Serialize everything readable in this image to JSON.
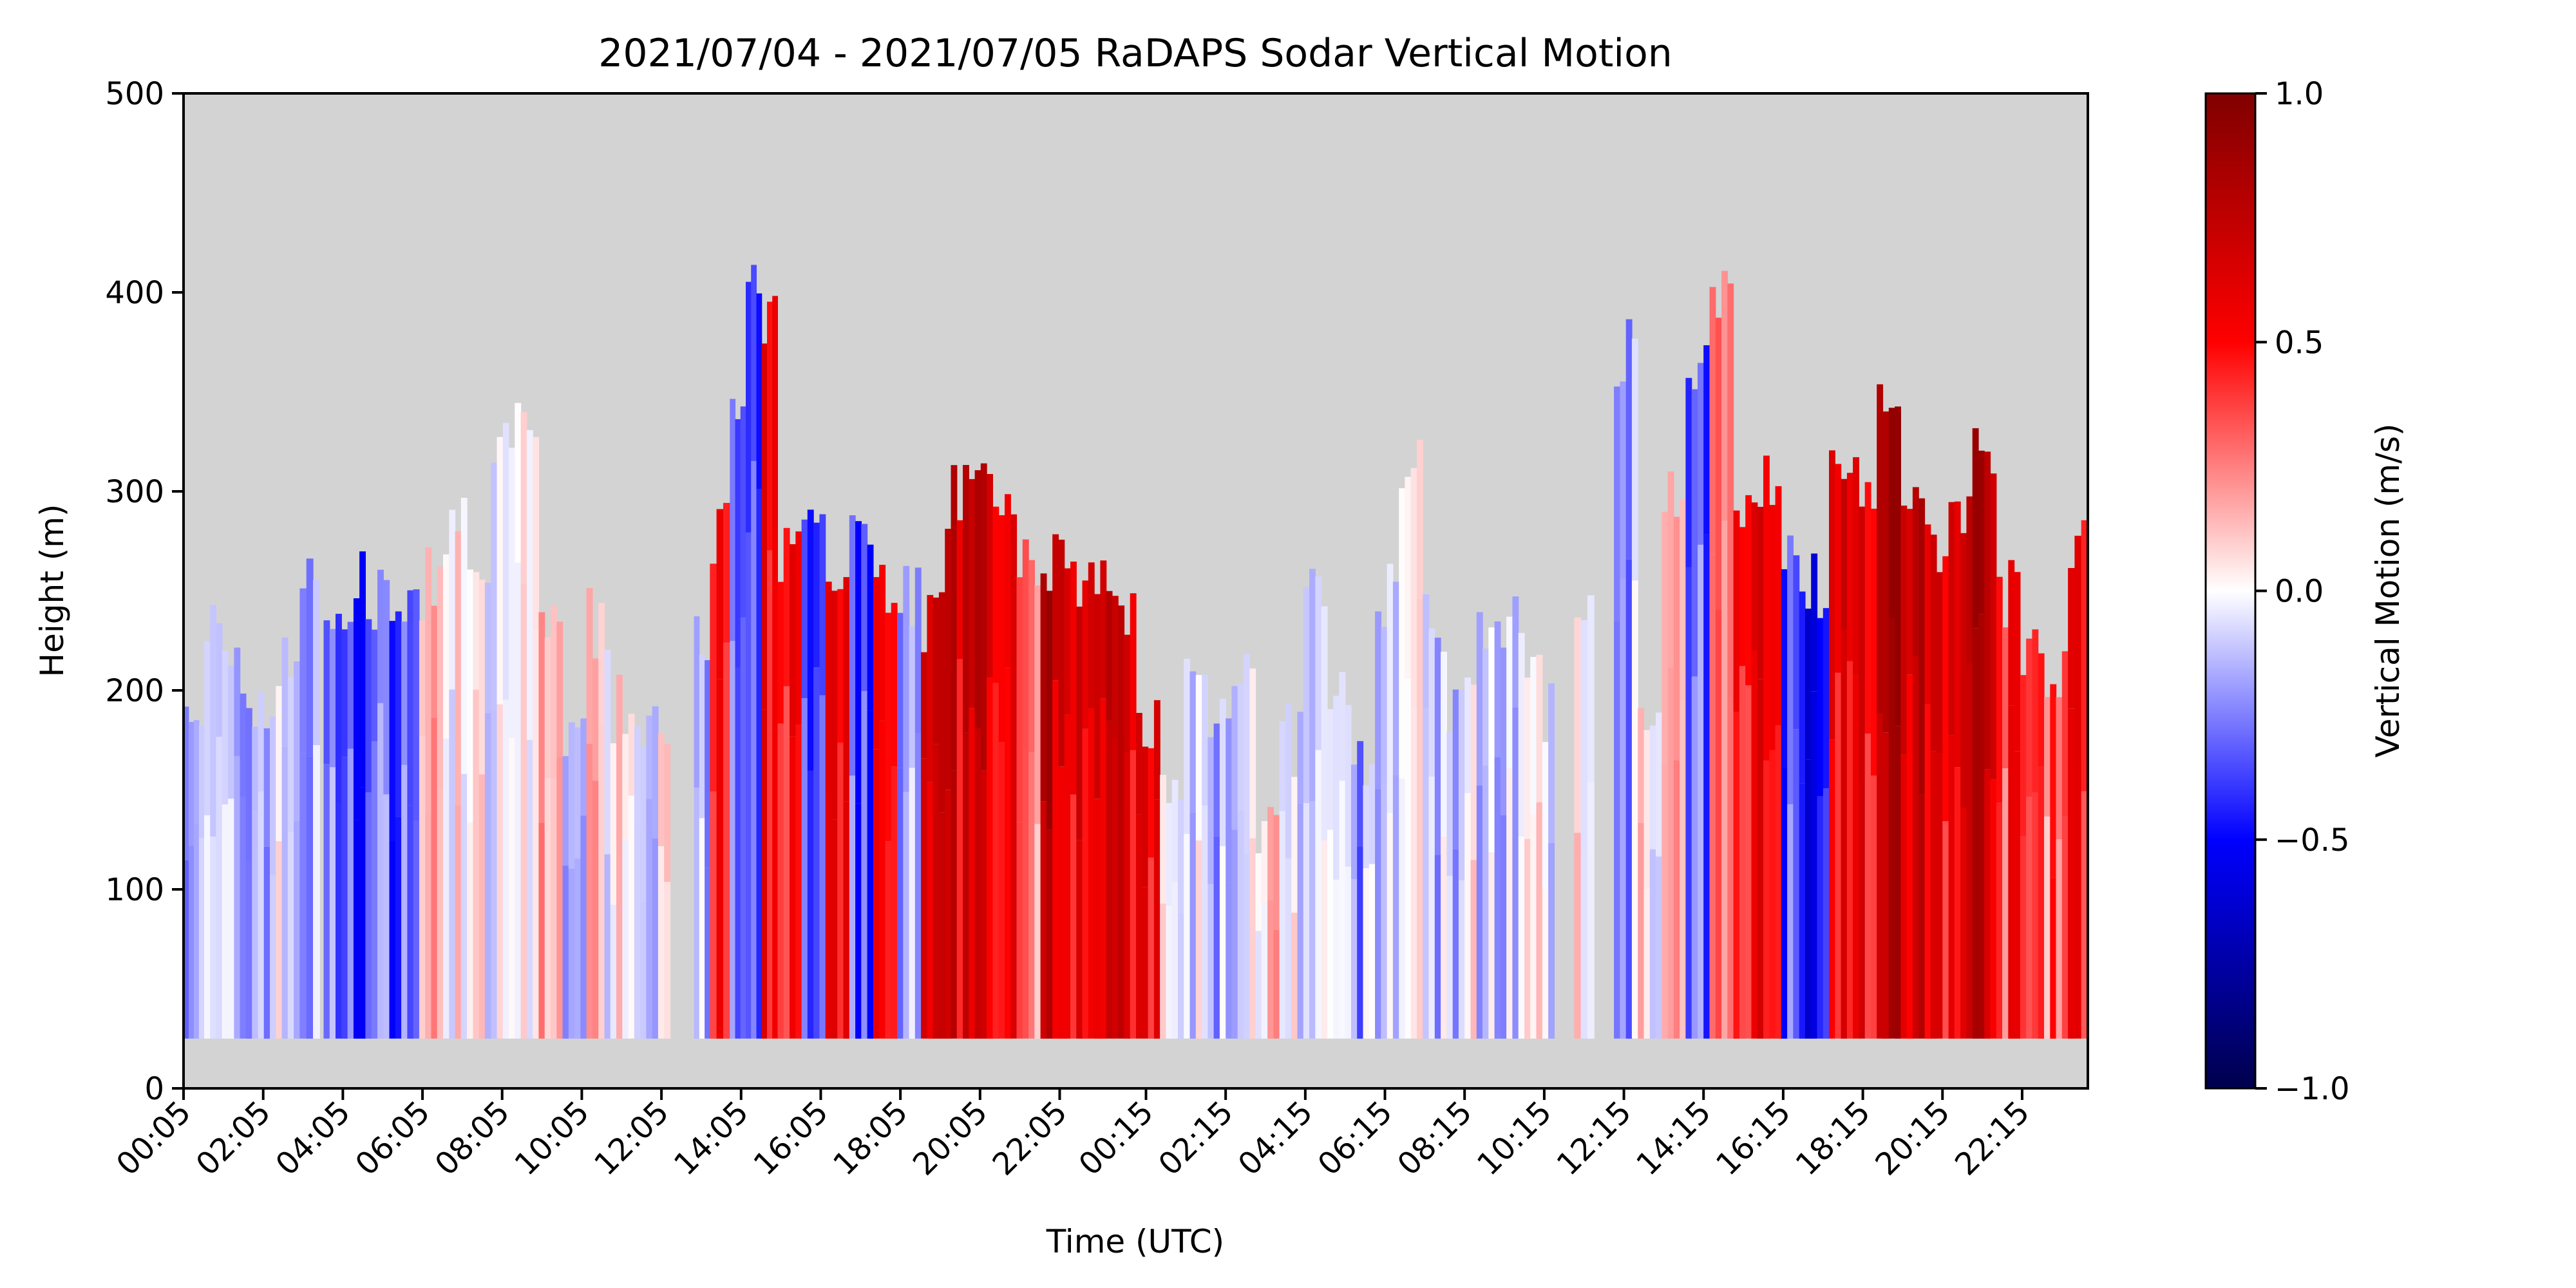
{
  "chart_data": {
    "type": "heatmap",
    "title": "2021/07/04 - 2021/07/05 RaDAPS Sodar Vertical Motion",
    "xlabel": "Time (UTC)",
    "ylabel": "Height (m)",
    "xlim_hours": [
      0.083,
      47.9
    ],
    "ylim": [
      0,
      500
    ],
    "y_ticks": [
      0,
      100,
      200,
      300,
      400,
      500
    ],
    "x_tick_labels": [
      "00:05",
      "02:05",
      "04:05",
      "06:05",
      "08:05",
      "10:05",
      "12:05",
      "14:05",
      "16:05",
      "18:05",
      "20:05",
      "22:05",
      "00:15",
      "02:15",
      "04:15",
      "06:15",
      "08:15",
      "10:15",
      "12:15",
      "14:15",
      "16:15",
      "18:15",
      "20:15",
      "22:15"
    ],
    "x_tick_hours": [
      0.083,
      2.083,
      4.083,
      6.083,
      8.083,
      10.083,
      12.083,
      14.083,
      16.083,
      18.083,
      20.083,
      22.083,
      24.25,
      26.25,
      28.25,
      30.25,
      32.25,
      34.25,
      36.25,
      38.25,
      40.25,
      42.25,
      44.25,
      46.25
    ],
    "missing_color": "#d3d3d3",
    "data_bottom_m": 25,
    "colormap": "seismic",
    "colorbar": {
      "label": "Vertical Motion (m/s)",
      "vmin": -1.0,
      "vmax": 1.0,
      "ticks": [
        -1.0,
        -0.5,
        0.0,
        0.5,
        1.0
      ],
      "tick_labels": [
        "−1.0",
        "−0.5",
        "0.0",
        "0.5",
        "1.0"
      ],
      "stops": [
        "#00004c",
        "#0000ff",
        "#ffffff",
        "#ff0000",
        "#800000"
      ]
    },
    "segments_note": "time ranges in hours, top height in m, mean vertical motion in m/s",
    "segments": [
      {
        "t0": 0.08,
        "t1": 0.6,
        "top": 175,
        "w": -0.1
      },
      {
        "t0": 0.6,
        "t1": 1.2,
        "top": 235,
        "w": -0.15
      },
      {
        "t0": 1.2,
        "t1": 1.8,
        "top": 205,
        "w": -0.2
      },
      {
        "t0": 1.8,
        "t1": 2.4,
        "top": 190,
        "w": -0.1
      },
      {
        "t0": 2.4,
        "t1": 3.0,
        "top": 220,
        "w": -0.08
      },
      {
        "t0": 3.0,
        "t1": 3.5,
        "top": 250,
        "w": -0.18
      },
      {
        "t0": 3.5,
        "t1": 3.6,
        "top": 0,
        "w": null
      },
      {
        "t0": 3.6,
        "t1": 4.2,
        "top": 235,
        "w": -0.3
      },
      {
        "t0": 4.2,
        "t1": 4.8,
        "top": 250,
        "w": -0.35
      },
      {
        "t0": 4.8,
        "t1": 5.4,
        "top": 245,
        "w": -0.3
      },
      {
        "t0": 5.4,
        "t1": 6.0,
        "top": 235,
        "w": -0.25
      },
      {
        "t0": 6.0,
        "t1": 6.6,
        "top": 255,
        "w": 0.1
      },
      {
        "t0": 6.6,
        "t1": 7.2,
        "top": 280,
        "w": 0.08
      },
      {
        "t0": 7.2,
        "t1": 7.8,
        "top": 245,
        "w": -0.05
      },
      {
        "t0": 7.8,
        "t1": 8.4,
        "top": 325,
        "w": -0.08
      },
      {
        "t0": 8.4,
        "t1": 9.0,
        "top": 325,
        "w": 0.05
      },
      {
        "t0": 9.0,
        "t1": 9.6,
        "top": 240,
        "w": 0.1
      },
      {
        "t0": 9.6,
        "t1": 10.2,
        "top": 175,
        "w": -0.05
      },
      {
        "t0": 10.2,
        "t1": 10.8,
        "top": 235,
        "w": 0.05
      },
      {
        "t0": 10.8,
        "t1": 11.4,
        "top": 190,
        "w": 0.12
      },
      {
        "t0": 11.4,
        "t1": 12.0,
        "top": 175,
        "w": -0.06
      },
      {
        "t0": 12.0,
        "t1": 12.3,
        "top": 190,
        "w": 0.2
      },
      {
        "t0": 12.3,
        "t1": 12.9,
        "top": 0,
        "w": null
      },
      {
        "t0": 12.9,
        "t1": 13.3,
        "top": 235,
        "w": -0.2
      },
      {
        "t0": 13.3,
        "t1": 13.8,
        "top": 280,
        "w": 0.4
      },
      {
        "t0": 13.8,
        "t1": 14.2,
        "top": 340,
        "w": -0.3
      },
      {
        "t0": 14.2,
        "t1": 14.6,
        "top": 400,
        "w": -0.4
      },
      {
        "t0": 14.6,
        "t1": 15.0,
        "top": 380,
        "w": 0.45
      },
      {
        "t0": 15.0,
        "t1": 15.6,
        "top": 265,
        "w": 0.5
      },
      {
        "t0": 15.6,
        "t1": 16.2,
        "top": 295,
        "w": -0.4
      },
      {
        "t0": 16.2,
        "t1": 16.8,
        "top": 270,
        "w": 0.45
      },
      {
        "t0": 16.8,
        "t1": 17.4,
        "top": 280,
        "w": -0.35
      },
      {
        "t0": 17.4,
        "t1": 18.0,
        "top": 255,
        "w": 0.4
      },
      {
        "t0": 18.0,
        "t1": 18.6,
        "top": 250,
        "w": -0.2
      },
      {
        "t0": 18.6,
        "t1": 19.2,
        "top": 235,
        "w": 0.55
      },
      {
        "t0": 19.2,
        "t1": 19.8,
        "top": 295,
        "w": 0.6
      },
      {
        "t0": 19.8,
        "t1": 20.4,
        "top": 325,
        "w": 0.7
      },
      {
        "t0": 20.4,
        "t1": 21.0,
        "top": 280,
        "w": 0.45
      },
      {
        "t0": 21.0,
        "t1": 21.6,
        "top": 270,
        "w": 0.25
      },
      {
        "t0": 21.6,
        "t1": 22.2,
        "top": 265,
        "w": 0.75
      },
      {
        "t0": 22.2,
        "t1": 22.8,
        "top": 245,
        "w": 0.6
      },
      {
        "t0": 22.8,
        "t1": 23.4,
        "top": 250,
        "w": 0.65
      },
      {
        "t0": 23.4,
        "t1": 24.0,
        "top": 235,
        "w": 0.55
      },
      {
        "t0": 24.0,
        "t1": 24.6,
        "top": 190,
        "w": 0.5
      },
      {
        "t0": 24.6,
        "t1": 25.2,
        "top": 145,
        "w": -0.05
      },
      {
        "t0": 25.2,
        "t1": 25.8,
        "top": 205,
        "w": -0.1
      },
      {
        "t0": 25.8,
        "t1": 26.4,
        "top": 190,
        "w": -0.15
      },
      {
        "t0": 26.4,
        "t1": 27.0,
        "top": 220,
        "w": -0.05
      },
      {
        "t0": 27.0,
        "t1": 27.6,
        "top": 130,
        "w": 0.1
      },
      {
        "t0": 27.6,
        "t1": 28.2,
        "top": 175,
        "w": -0.1
      },
      {
        "t0": 28.2,
        "t1": 28.8,
        "top": 250,
        "w": -0.15
      },
      {
        "t0": 28.8,
        "t1": 29.4,
        "top": 190,
        "w": -0.1
      },
      {
        "t0": 29.4,
        "t1": 30.0,
        "top": 160,
        "w": -0.18
      },
      {
        "t0": 30.0,
        "t1": 30.6,
        "top": 250,
        "w": -0.1
      },
      {
        "t0": 30.6,
        "t1": 31.2,
        "top": 310,
        "w": 0.05
      },
      {
        "t0": 31.2,
        "t1": 31.8,
        "top": 235,
        "w": -0.1
      },
      {
        "t0": 31.8,
        "t1": 32.4,
        "top": 190,
        "w": -0.12
      },
      {
        "t0": 32.4,
        "t1": 33.0,
        "top": 220,
        "w": -0.05
      },
      {
        "t0": 33.0,
        "t1": 33.6,
        "top": 230,
        "w": -0.08
      },
      {
        "t0": 33.6,
        "t1": 34.2,
        "top": 220,
        "w": -0.06
      },
      {
        "t0": 34.2,
        "t1": 34.5,
        "top": 190,
        "w": -0.05
      },
      {
        "t0": 34.5,
        "t1": 35.0,
        "top": 0,
        "w": null
      },
      {
        "t0": 35.0,
        "t1": 35.5,
        "top": 235,
        "w": -0.05
      },
      {
        "t0": 35.5,
        "t1": 36.0,
        "top": 0,
        "w": null
      },
      {
        "t0": 36.0,
        "t1": 36.6,
        "top": 370,
        "w": -0.15
      },
      {
        "t0": 36.6,
        "t1": 37.2,
        "top": 200,
        "w": 0.05
      },
      {
        "t0": 37.2,
        "t1": 37.8,
        "top": 300,
        "w": 0.1
      },
      {
        "t0": 37.8,
        "t1": 38.4,
        "top": 355,
        "w": -0.35
      },
      {
        "t0": 38.4,
        "t1": 39.0,
        "top": 400,
        "w": 0.2
      },
      {
        "t0": 39.0,
        "t1": 39.6,
        "top": 280,
        "w": 0.55
      },
      {
        "t0": 39.6,
        "t1": 40.2,
        "top": 310,
        "w": 0.5
      },
      {
        "t0": 40.2,
        "t1": 40.8,
        "top": 265,
        "w": -0.3
      },
      {
        "t0": 40.8,
        "t1": 41.4,
        "top": 250,
        "w": -0.45
      },
      {
        "t0": 41.4,
        "t1": 42.0,
        "top": 325,
        "w": 0.6
      },
      {
        "t0": 42.0,
        "t1": 42.6,
        "top": 310,
        "w": 0.5
      },
      {
        "t0": 42.6,
        "t1": 43.2,
        "top": 335,
        "w": 0.7
      },
      {
        "t0": 43.2,
        "t1": 43.8,
        "top": 295,
        "w": 0.65
      },
      {
        "t0": 43.8,
        "t1": 44.4,
        "top": 265,
        "w": 0.55
      },
      {
        "t0": 44.4,
        "t1": 45.0,
        "top": 295,
        "w": 0.6
      },
      {
        "t0": 45.0,
        "t1": 45.6,
        "top": 325,
        "w": 0.7
      },
      {
        "t0": 45.6,
        "t1": 46.2,
        "top": 250,
        "w": 0.4
      },
      {
        "t0": 46.2,
        "t1": 46.8,
        "top": 225,
        "w": 0.35
      },
      {
        "t0": 46.8,
        "t1": 47.4,
        "top": 215,
        "w": 0.3
      },
      {
        "t0": 47.4,
        "t1": 47.9,
        "top": 280,
        "w": 0.45
      }
    ]
  }
}
